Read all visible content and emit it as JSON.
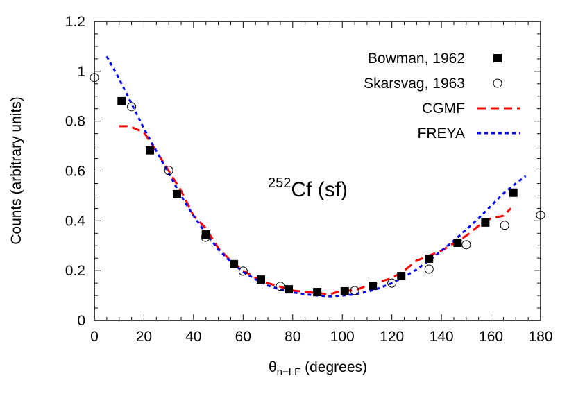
{
  "chart_data": {
    "type": "scatter",
    "xlabel": "θ",
    "xlabel_sub": "n−LF",
    "xlabel_unit": " (degrees)",
    "ylabel": "Counts (arbitrary units)",
    "xlim": [
      0,
      180
    ],
    "ylim": [
      0,
      1.2
    ],
    "xticks": [
      0,
      20,
      40,
      60,
      80,
      100,
      120,
      140,
      160,
      180
    ],
    "yticks": [
      "0",
      "0.2",
      "0.4",
      "0.6",
      "0.8",
      "1",
      "1.2"
    ],
    "grid": false,
    "legend_position": "top-right",
    "annotation": {
      "sup": "252",
      "text": "Cf (sf)"
    },
    "series": [
      {
        "name": "Bowman, 1962",
        "style": "filled-square",
        "color": "#000000",
        "x": [
          11,
          22.4,
          33.3,
          45,
          56.3,
          67.2,
          78.4,
          89.9,
          101,
          112.3,
          123.8,
          135,
          146.5,
          157.7,
          169
        ],
        "y": [
          0.88,
          0.683,
          0.507,
          0.345,
          0.226,
          0.164,
          0.125,
          0.114,
          0.117,
          0.139,
          0.178,
          0.248,
          0.312,
          0.393,
          0.513
        ]
      },
      {
        "name": "Skarsvag, 1963",
        "style": "open-circle",
        "color": "#000000",
        "x": [
          0,
          15,
          30,
          44.8,
          60,
          75,
          105,
          120,
          135,
          150,
          165.5,
          180
        ],
        "y": [
          0.975,
          0.858,
          0.602,
          0.334,
          0.198,
          0.137,
          0.12,
          0.15,
          0.206,
          0.304,
          0.382,
          0.423
        ]
      },
      {
        "name": "CGMF",
        "style": "dashed-line",
        "color": "#ff0000",
        "x": [
          10,
          14,
          20,
          25,
          30,
          35,
          40,
          45,
          50,
          55,
          60,
          65,
          70,
          80,
          90,
          95,
          100,
          105,
          110,
          115,
          120,
          125,
          130,
          135,
          140,
          145,
          150,
          155,
          160,
          165,
          168
        ],
        "y": [
          0.78,
          0.78,
          0.755,
          0.68,
          0.6,
          0.52,
          0.42,
          0.37,
          0.29,
          0.24,
          0.2,
          0.17,
          0.15,
          0.12,
          0.11,
          0.105,
          0.12,
          0.12,
          0.14,
          0.155,
          0.17,
          0.2,
          0.24,
          0.26,
          0.28,
          0.31,
          0.34,
          0.38,
          0.41,
          0.42,
          0.45
        ]
      },
      {
        "name": "FREYA",
        "style": "dotted-line",
        "color": "#0000ff",
        "x": [
          5,
          10,
          15,
          20,
          25,
          30,
          35,
          40,
          45,
          50,
          55,
          60,
          65,
          70,
          75,
          80,
          85,
          90,
          95,
          100,
          105,
          110,
          115,
          120,
          125,
          130,
          135,
          140,
          145,
          150,
          155,
          160,
          165,
          170,
          174
        ],
        "y": [
          1.06,
          0.97,
          0.87,
          0.77,
          0.68,
          0.59,
          0.5,
          0.42,
          0.35,
          0.285,
          0.235,
          0.195,
          0.165,
          0.14,
          0.125,
          0.113,
          0.105,
          0.1,
          0.097,
          0.1,
          0.105,
          0.115,
          0.13,
          0.15,
          0.175,
          0.205,
          0.24,
          0.28,
          0.32,
          0.365,
          0.41,
          0.46,
          0.51,
          0.55,
          0.58
        ]
      }
    ]
  }
}
